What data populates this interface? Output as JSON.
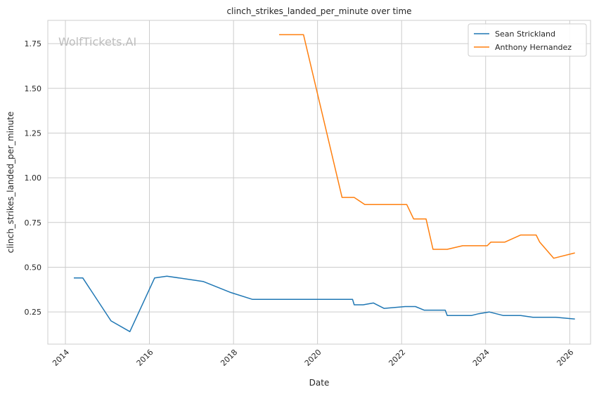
{
  "chart_data": {
    "type": "line",
    "title": "clinch_strikes_landed_per_minute over time",
    "xlabel": "Date",
    "ylabel": "clinch_strikes_landed_per_minute",
    "watermark": "WolfTickets.AI",
    "xlim": [
      "2013-08-01",
      "2026-07-01"
    ],
    "ylim": [
      0.07,
      1.88
    ],
    "x_ticks": [
      "2014-01-01",
      "2016-01-01",
      "2018-01-01",
      "2020-01-01",
      "2022-01-01",
      "2024-01-01",
      "2026-01-01"
    ],
    "x_tick_labels": [
      "2014",
      "2016",
      "2018",
      "2020",
      "2022",
      "2024",
      "2026"
    ],
    "y_ticks": [
      0.25,
      0.5,
      0.75,
      1.0,
      1.25,
      1.5,
      1.75
    ],
    "y_tick_labels": [
      "0.25",
      "0.50",
      "0.75",
      "1.00",
      "1.25",
      "1.50",
      "1.75"
    ],
    "grid": true,
    "legend_position": "top-right",
    "series": [
      {
        "name": "Sean Strickland",
        "color": "#1f77b4",
        "points": [
          [
            "2014-03-15",
            0.44
          ],
          [
            "2014-06-01",
            0.44
          ],
          [
            "2015-02-01",
            0.2
          ],
          [
            "2015-07-15",
            0.14
          ],
          [
            "2016-02-15",
            0.44
          ],
          [
            "2016-06-01",
            0.45
          ],
          [
            "2017-04-15",
            0.42
          ],
          [
            "2017-12-01",
            0.36
          ],
          [
            "2018-06-15",
            0.32
          ],
          [
            "2019-06-01",
            0.32
          ],
          [
            "2020-06-01",
            0.32
          ],
          [
            "2020-11-01",
            0.32
          ],
          [
            "2020-11-15",
            0.29
          ],
          [
            "2021-02-01",
            0.29
          ],
          [
            "2021-05-01",
            0.3
          ],
          [
            "2021-08-01",
            0.27
          ],
          [
            "2022-02-01",
            0.28
          ],
          [
            "2022-05-01",
            0.28
          ],
          [
            "2022-07-15",
            0.26
          ],
          [
            "2022-11-01",
            0.26
          ],
          [
            "2023-01-15",
            0.26
          ],
          [
            "2023-02-01",
            0.23
          ],
          [
            "2023-06-01",
            0.23
          ],
          [
            "2023-09-01",
            0.23
          ],
          [
            "2023-11-01",
            0.24
          ],
          [
            "2024-02-01",
            0.25
          ],
          [
            "2024-06-01",
            0.23
          ],
          [
            "2024-11-01",
            0.23
          ],
          [
            "2025-02-15",
            0.22
          ],
          [
            "2025-09-01",
            0.22
          ],
          [
            "2026-02-15",
            0.21
          ]
        ]
      },
      {
        "name": "Anthony Hernandez",
        "color": "#ff7f0e",
        "points": [
          [
            "2019-02-01",
            1.8
          ],
          [
            "2019-09-01",
            1.8
          ],
          [
            "2020-08-01",
            0.89
          ],
          [
            "2020-11-15",
            0.89
          ],
          [
            "2021-02-15",
            0.85
          ],
          [
            "2021-09-01",
            0.85
          ],
          [
            "2022-02-15",
            0.85
          ],
          [
            "2022-04-15",
            0.77
          ],
          [
            "2022-08-01",
            0.77
          ],
          [
            "2022-10-01",
            0.6
          ],
          [
            "2023-02-01",
            0.6
          ],
          [
            "2023-06-15",
            0.62
          ],
          [
            "2024-01-15",
            0.62
          ],
          [
            "2024-02-15",
            0.64
          ],
          [
            "2024-06-15",
            0.64
          ],
          [
            "2024-11-01",
            0.68
          ],
          [
            "2025-03-15",
            0.68
          ],
          [
            "2025-04-15",
            0.64
          ],
          [
            "2025-08-15",
            0.55
          ],
          [
            "2026-02-15",
            0.58
          ]
        ]
      }
    ]
  }
}
